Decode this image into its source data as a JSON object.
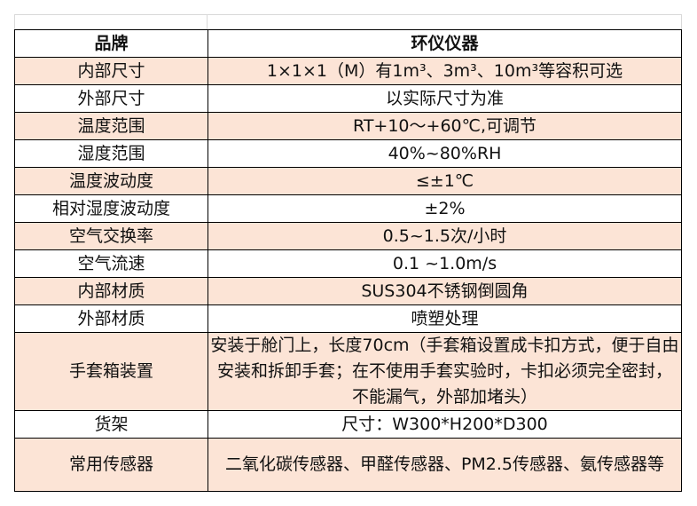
{
  "header": {
    "key": "品牌",
    "value": "环仪仪器"
  },
  "rows": [
    {
      "key": "内部尺寸",
      "value": "1×1×1（M）有1m³、3m³、10m³等容积可选"
    },
    {
      "key": "外部尺寸",
      "value": "以实际尺寸为准"
    },
    {
      "key": "温度范围",
      "value": "RT+10～+60℃,可调节"
    },
    {
      "key": "湿度范围",
      "value": "40%~80%RH"
    },
    {
      "key": "温度波动度",
      "value": "≤±1℃"
    },
    {
      "key": "相对湿度波动度",
      "value": "±2%"
    },
    {
      "key": "空气交换率",
      "value": "0.5~1.5次/小时"
    },
    {
      "key": "空气流速",
      "value": "0.1 ~1.0m/s"
    },
    {
      "key": "内部材质",
      "value": "SUS304不锈钢倒圆角"
    },
    {
      "key": "外部材质",
      "value": "喷塑处理"
    },
    {
      "key": "手套箱装置",
      "value": "安装于舱门上，长度70cm（手套箱设置成卡扣方式，便于自由安装和拆卸手套；在不使用手套实验时，卡扣必须完全密封，不能漏气，外部加堵头）"
    },
    {
      "key": "货架",
      "value": "尺寸：W300*H200*D300"
    },
    {
      "key": "常用传感器",
      "value": "二氧化碳传感器、甲醛传感器、PM2.5传感器、氨传感器等"
    }
  ],
  "colors": {
    "alt_row": "#FCE4D6",
    "border": "#000000"
  }
}
